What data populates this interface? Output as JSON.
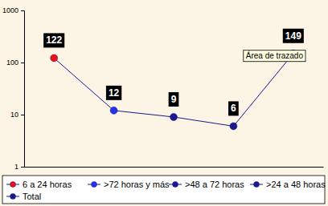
{
  "chart_data": {
    "type": "line",
    "categories": [
      "6 a 24 horas",
      ">72 horas y más",
      ">48 a 72 horas",
      ">24 a 48 horas",
      "Total"
    ],
    "values": [
      122,
      12,
      9,
      6,
      149
    ],
    "colors": [
      "#ee1111",
      "#2233ee",
      "#1a1a8c",
      "#1a1a8c",
      "#1a1a8c"
    ],
    "color": "#1a1a8c",
    "marker": "circle",
    "log": "y",
    "ylim": [
      1,
      1000
    ],
    "yticks": [
      1,
      10,
      100,
      1000
    ],
    "tick_labels": "y",
    "data_labels": true,
    "legend": "bottom",
    "annotation": "Área de trazado"
  }
}
